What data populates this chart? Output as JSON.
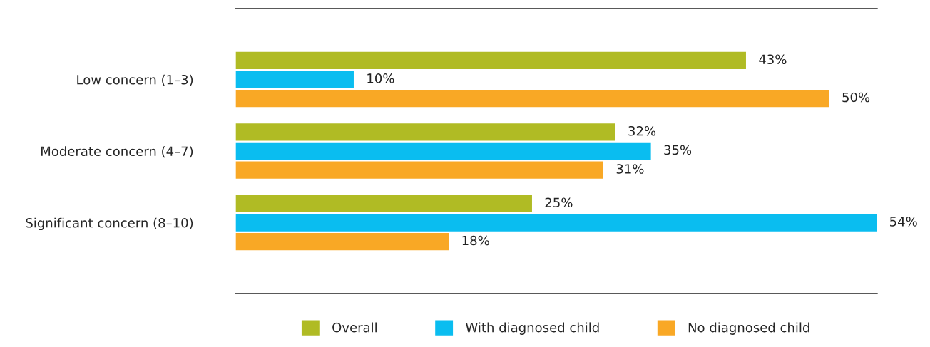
{
  "chart_data": {
    "type": "bar",
    "orientation": "horizontal",
    "categories": [
      "Low concern (1–3)",
      "Moderate concern (4–7)",
      "Significant concern (8–10)"
    ],
    "series": [
      {
        "name": "Overall",
        "color": "#b0bb24",
        "values": [
          43,
          32,
          25
        ],
        "value_labels": [
          "43%",
          "32%",
          "25%"
        ]
      },
      {
        "name": "With diagnosed child",
        "color": "#0abdf0",
        "values": [
          10,
          35,
          54
        ],
        "value_labels": [
          "10%",
          "35%",
          "54%"
        ]
      },
      {
        "name": "No diagnosed child",
        "color": "#f9a825",
        "values": [
          50,
          31,
          18
        ],
        "value_labels": [
          "50%",
          "31%",
          "18%"
        ]
      }
    ],
    "legend": "bottom"
  }
}
